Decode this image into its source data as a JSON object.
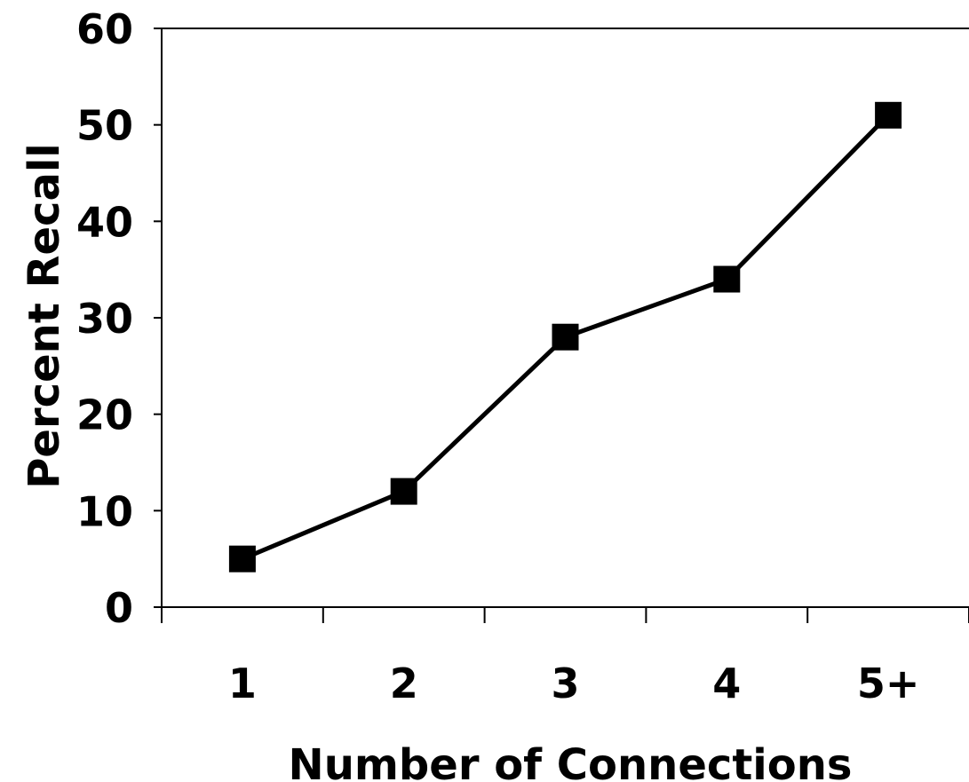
{
  "chart_data": {
    "type": "line",
    "title": "",
    "xlabel": "Number of Connections",
    "ylabel": "Percent Recall",
    "categories": [
      "1",
      "2",
      "3",
      "4",
      "5+"
    ],
    "series": [
      {
        "values": [
          5,
          12,
          28,
          34,
          51
        ]
      }
    ],
    "ylim": [
      0,
      60
    ],
    "yticks": [
      "0",
      "10",
      "20",
      "30",
      "40",
      "50",
      "60"
    ],
    "grid": false,
    "legend": "none",
    "marker": "square",
    "colors": {
      "line": "#000000",
      "marker": "#000000",
      "axis": "#000000"
    }
  }
}
